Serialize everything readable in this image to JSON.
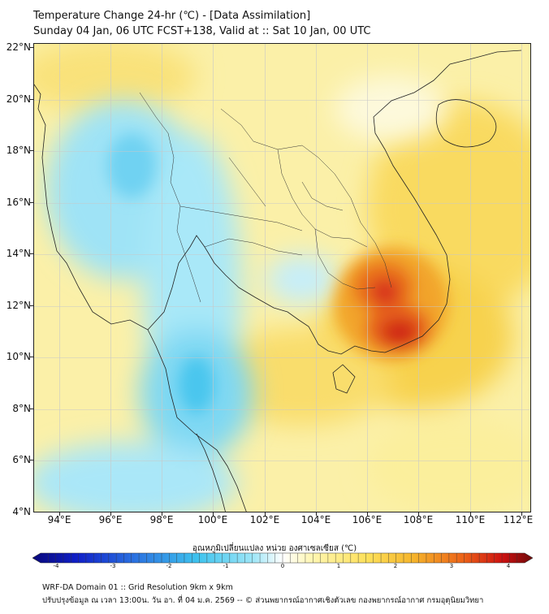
{
  "header": {
    "title": "Temperature Change 24-hr (℃) - [Data Assimilation]",
    "subtitle": "Sunday 04 Jan, 06 UTC FCST+138, Valid at :: Sat 10 Jan, 00 UTC"
  },
  "map": {
    "lat_labels": [
      "22°N",
      "20°N",
      "18°N",
      "16°N",
      "14°N",
      "12°N",
      "10°N",
      "8°N",
      "6°N",
      "4°N"
    ],
    "lon_labels": [
      "94°E",
      "96°E",
      "98°E",
      "100°E",
      "102°E",
      "104°E",
      "106°E",
      "108°E",
      "110°E",
      "112°E"
    ],
    "lat_range": [
      4,
      22.2
    ],
    "lon_range": [
      93,
      112.4
    ],
    "grid": true
  },
  "colorbar": {
    "label": "อุณหภูมิเปลี่ยนแปลง หน่วย องศาเซลเซียส (℃)",
    "ticks": [
      "-4",
      "-3",
      "-2",
      "-1",
      "0",
      "1",
      "2",
      "3",
      "4"
    ],
    "range": [
      -4,
      4
    ],
    "colors": [
      "#08087a",
      "#1020c8",
      "#2a6fe0",
      "#3fc3ee",
      "#9de6f7",
      "#ffffff",
      "#fff6b0",
      "#fde05a",
      "#f5b52c",
      "#ec6318",
      "#cc1010",
      "#6e0a0a"
    ]
  },
  "footer": {
    "line1": "WRF-DA Domain 01 :: Grid Resolution 9km x 9km",
    "line2": "ปรับปรุงข้อมูล ณ เวลา 13:00น. วัน อา. ที่ 04 ม.ค. 2569 -- © ส่วนพยากรณ์อากาศเชิงตัวเลข กองพยากรณ์อากาศ กรมอุตุนิยมวิทยา"
  }
}
